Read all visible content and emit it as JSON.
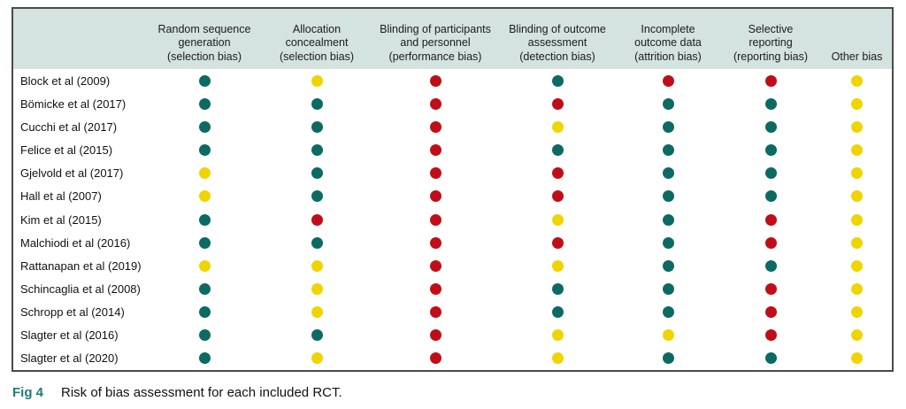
{
  "caption": {
    "label": "Fig 4",
    "text": "Risk of bias assessment for each included RCT."
  },
  "colors": {
    "header_bg": "#d4e3e0",
    "table_border": "#4a4a4a",
    "caption_label": "#1f7b74",
    "text": "#1b1b1b"
  },
  "chart_data": {
    "type": "table",
    "title": "Risk of bias assessment for each included RCT",
    "rating_colors": {
      "low": "#0d6a62",
      "unclear": "#f0d400",
      "high": "#c00e18"
    },
    "columns": [
      {
        "id": "random-sequence-generation",
        "lines": [
          "Random sequence",
          "generation",
          "(selection bias)"
        ]
      },
      {
        "id": "allocation-concealment",
        "lines": [
          "Allocation",
          "concealment",
          "(selection bias)"
        ]
      },
      {
        "id": "blinding-participants-personnel",
        "lines": [
          "Blinding of participants",
          "and personnel",
          "(performance bias)"
        ]
      },
      {
        "id": "blinding-outcome-assessment",
        "lines": [
          "Blinding of outcome",
          "assessment",
          "(detection bias)"
        ]
      },
      {
        "id": "incomplete-outcome-data",
        "lines": [
          "Incomplete",
          "outcome data",
          "(attrition bias)"
        ]
      },
      {
        "id": "selective-reporting",
        "lines": [
          "Selective",
          "reporting",
          "(reporting bias)"
        ]
      },
      {
        "id": "other-bias",
        "lines": [
          "Other bias"
        ]
      }
    ],
    "rows": [
      {
        "study": "Block et al (2009)",
        "ratings": [
          "low",
          "unclear",
          "high",
          "low",
          "high",
          "high",
          "unclear"
        ]
      },
      {
        "study": "Bömicke et al (2017)",
        "ratings": [
          "low",
          "low",
          "high",
          "high",
          "low",
          "low",
          "unclear"
        ]
      },
      {
        "study": "Cucchi et al (2017)",
        "ratings": [
          "low",
          "low",
          "high",
          "unclear",
          "low",
          "low",
          "unclear"
        ]
      },
      {
        "study": "Felice et al (2015)",
        "ratings": [
          "low",
          "low",
          "high",
          "low",
          "low",
          "low",
          "unclear"
        ]
      },
      {
        "study": "Gjelvold et al (2017)",
        "ratings": [
          "unclear",
          "low",
          "high",
          "high",
          "low",
          "low",
          "unclear"
        ]
      },
      {
        "study": "Hall et al (2007)",
        "ratings": [
          "unclear",
          "low",
          "high",
          "high",
          "low",
          "low",
          "unclear"
        ]
      },
      {
        "study": "Kim et al (2015)",
        "ratings": [
          "low",
          "high",
          "high",
          "unclear",
          "low",
          "high",
          "unclear"
        ]
      },
      {
        "study": "Malchiodi et al (2016)",
        "ratings": [
          "low",
          "low",
          "high",
          "high",
          "low",
          "high",
          "unclear"
        ]
      },
      {
        "study": "Rattanapan et al (2019)",
        "ratings": [
          "unclear",
          "unclear",
          "high",
          "unclear",
          "low",
          "low",
          "unclear"
        ]
      },
      {
        "study": "Schincaglia et al (2008)",
        "ratings": [
          "low",
          "unclear",
          "high",
          "low",
          "low",
          "high",
          "unclear"
        ]
      },
      {
        "study": "Schropp et al (2014)",
        "ratings": [
          "low",
          "unclear",
          "high",
          "low",
          "low",
          "high",
          "unclear"
        ]
      },
      {
        "study": "Slagter et al (2016)",
        "ratings": [
          "low",
          "low",
          "high",
          "unclear",
          "unclear",
          "high",
          "unclear"
        ]
      },
      {
        "study": "Slagter et al (2020)",
        "ratings": [
          "low",
          "unclear",
          "high",
          "unclear",
          "low",
          "low",
          "unclear"
        ]
      }
    ]
  }
}
